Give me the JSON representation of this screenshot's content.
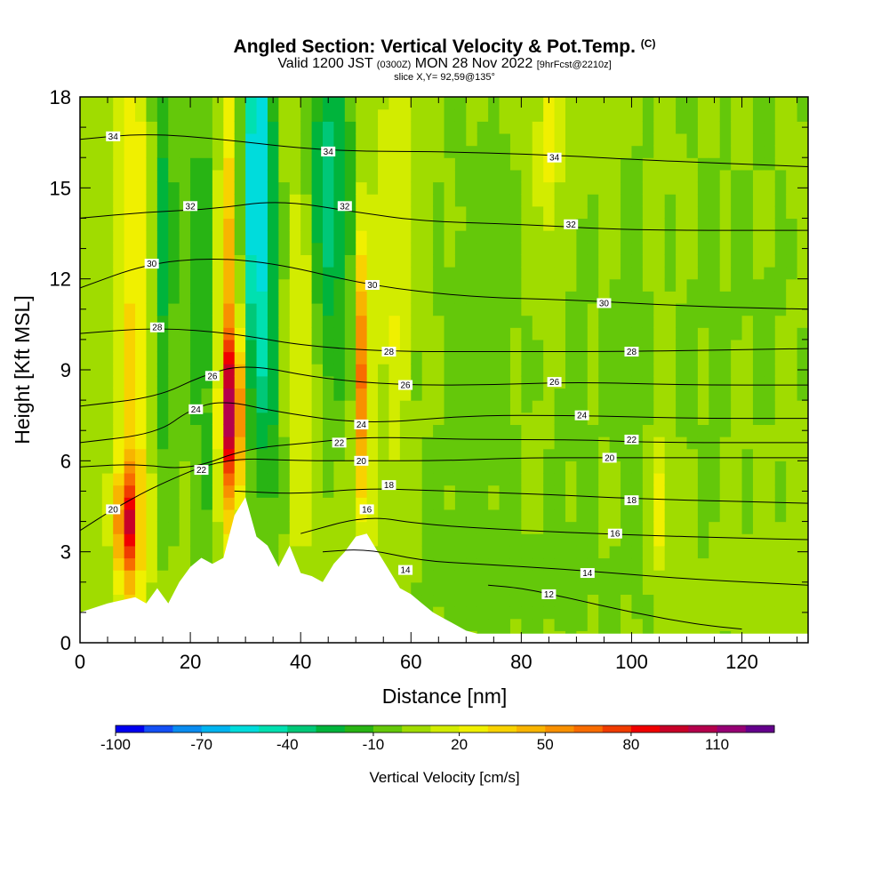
{
  "header": {
    "title": "Angled Section: Vertical Velocity & Pot.Temp.",
    "copyright": "(C)",
    "valid_prefix": "Valid 1200 JST",
    "valid_utc": "(0300Z)",
    "valid_date": "MON 28 Nov 2022",
    "forecast": "[9hrFcst@2210z]",
    "slice": "slice X,Y= 92,59@135°"
  },
  "chart_data": {
    "type": "heatmap",
    "title": "Angled Section: Vertical Velocity & Pot.Temp.",
    "xlabel": "Distance [nm]",
    "ylabel": "Height [Kft MSL]",
    "xlim": [
      0,
      132
    ],
    "ylim": [
      0,
      18
    ],
    "x_ticks": [
      0,
      20,
      40,
      60,
      80,
      100,
      120
    ],
    "x_tick_labels": [
      "0",
      "20",
      "40",
      "60",
      "80",
      "100",
      "120"
    ],
    "y_ticks": [
      0,
      3,
      6,
      9,
      12,
      15,
      18
    ],
    "y_tick_labels": [
      "0",
      "3",
      "6",
      "9",
      "12",
      "15",
      "18"
    ],
    "background_value": 5,
    "velocity_features": [
      {
        "x": 8.5,
        "y": 4.0,
        "sx": 1.3,
        "sy": 1.3,
        "value": 75
      },
      {
        "x": 10,
        "y": 9.5,
        "sx": 2.2,
        "sy": 9,
        "value": 28
      },
      {
        "x": 15,
        "y": 13.0,
        "sx": 1.6,
        "sy": 6,
        "value": -30
      },
      {
        "x": 22.5,
        "y": 11.5,
        "sx": 2.5,
        "sy": 7,
        "value": -22
      },
      {
        "x": 27.5,
        "y": 7.5,
        "sx": 1.3,
        "sy": 1.8,
        "value": 80
      },
      {
        "x": 27,
        "y": 11.5,
        "sx": 1.6,
        "sy": 6,
        "value": 45
      },
      {
        "x": 32,
        "y": 15.5,
        "sx": 2.2,
        "sy": 4.5,
        "value": -65
      },
      {
        "x": 34,
        "y": 8.5,
        "sx": 2.6,
        "sy": 3.5,
        "value": -25
      },
      {
        "x": 40,
        "y": 10.0,
        "sx": 2.2,
        "sy": 4,
        "value": 25
      },
      {
        "x": 45,
        "y": 15.0,
        "sx": 3,
        "sy": 5,
        "value": -40
      },
      {
        "x": 51.5,
        "y": 9.0,
        "sx": 0.9,
        "sy": 3.5,
        "value": 65
      },
      {
        "x": 57,
        "y": 13.0,
        "sx": 2,
        "sy": 6,
        "value": 18
      },
      {
        "x": 65,
        "y": 7.0,
        "sx": 7,
        "sy": 10,
        "value": -5
      },
      {
        "x": 85,
        "y": 16.5,
        "sx": 1.5,
        "sy": 2.5,
        "value": 22
      },
      {
        "x": 75,
        "y": 11.0,
        "sx": 5,
        "sy": 6,
        "value": -8
      },
      {
        "x": 90,
        "y": 8.0,
        "sx": 4,
        "sy": 6,
        "value": -7
      },
      {
        "x": 105,
        "y": 4.5,
        "sx": 1.2,
        "sy": 1.5,
        "value": 25
      },
      {
        "x": 100,
        "y": 9.0,
        "sx": 3,
        "sy": 8,
        "value": -8
      },
      {
        "x": 112,
        "y": 10.0,
        "sx": 5,
        "sy": 8,
        "value": -6
      },
      {
        "x": 125,
        "y": 12.0,
        "sx": 6,
        "sy": 6,
        "value": -6
      },
      {
        "x": 80,
        "y": 2.0,
        "sx": 10,
        "sy": 1.5,
        "value": -8
      }
    ],
    "terrain": {
      "distance": [
        0,
        5,
        10,
        12,
        14,
        16,
        18,
        20,
        22,
        24,
        26,
        28,
        30,
        32,
        34,
        36,
        38,
        40,
        42,
        44,
        46,
        48,
        50,
        52,
        54,
        56,
        58,
        60,
        62,
        64,
        66,
        68,
        70,
        72,
        80,
        132
      ],
      "height": [
        1.0,
        1.3,
        1.5,
        1.3,
        1.8,
        1.3,
        2.0,
        2.5,
        2.8,
        2.6,
        2.8,
        4.2,
        4.8,
        3.5,
        3.2,
        2.5,
        3.2,
        2.3,
        2.2,
        2.0,
        2.6,
        3.0,
        3.5,
        3.6,
        3.0,
        2.4,
        1.8,
        1.6,
        1.3,
        1.0,
        0.8,
        0.6,
        0.4,
        0.3,
        0.3,
        0.3
      ]
    },
    "theta_contours": [
      {
        "level": "12",
        "points": [
          [
            74,
            1.9
          ],
          [
            80,
            1.8
          ],
          [
            88,
            1.5
          ],
          [
            100,
            1.0
          ],
          [
            112,
            0.6
          ],
          [
            120,
            0.45
          ]
        ],
        "labels": [
          [
            85,
            1.6
          ]
        ]
      },
      {
        "level": "14",
        "points": [
          [
            44,
            3.0
          ],
          [
            52,
            3.1
          ],
          [
            62,
            2.7
          ],
          [
            72,
            2.6
          ],
          [
            90,
            2.4
          ],
          [
            110,
            2.1
          ],
          [
            132,
            1.9
          ]
        ],
        "labels": [
          [
            59,
            2.4
          ],
          [
            92,
            2.3
          ]
        ]
      },
      {
        "level": "16",
        "points": [
          [
            40,
            3.6
          ],
          [
            52,
            4.2
          ],
          [
            62,
            3.9
          ],
          [
            80,
            3.7
          ],
          [
            100,
            3.55
          ],
          [
            120,
            3.45
          ],
          [
            132,
            3.4
          ]
        ],
        "labels": [
          [
            52,
            4.4
          ],
          [
            97,
            3.6
          ]
        ]
      },
      {
        "level": "18",
        "points": [
          [
            28,
            5.0
          ],
          [
            40,
            4.9
          ],
          [
            52,
            5.1
          ],
          [
            66,
            5.0
          ],
          [
            84,
            4.9
          ],
          [
            100,
            4.75
          ],
          [
            132,
            4.6
          ]
        ],
        "labels": [
          [
            56,
            5.2
          ],
          [
            100,
            4.7
          ]
        ]
      },
      {
        "level": "20",
        "points": [
          [
            0,
            3.7
          ],
          [
            6,
            4.4
          ],
          [
            14,
            5.2
          ],
          [
            26,
            6.1
          ],
          [
            40,
            6.0
          ],
          [
            52,
            6.0
          ],
          [
            66,
            6.0
          ],
          [
            80,
            6.1
          ],
          [
            100,
            6.1
          ],
          [
            132,
            6.1
          ]
        ],
        "labels": [
          [
            6,
            4.4
          ],
          [
            51,
            6.0
          ],
          [
            96,
            6.1
          ]
        ]
      },
      {
        "level": "22",
        "points": [
          [
            0,
            5.8
          ],
          [
            10,
            5.9
          ],
          [
            20,
            5.7
          ],
          [
            30,
            6.4
          ],
          [
            42,
            6.6
          ],
          [
            52,
            6.8
          ],
          [
            70,
            6.7
          ],
          [
            90,
            6.7
          ],
          [
            105,
            6.6
          ],
          [
            132,
            6.6
          ]
        ],
        "labels": [
          [
            22,
            5.7
          ],
          [
            47,
            6.6
          ],
          [
            100,
            6.7
          ]
        ]
      },
      {
        "level": "24",
        "points": [
          [
            0,
            6.6
          ],
          [
            14,
            6.9
          ],
          [
            20,
            7.7
          ],
          [
            26,
            8.0
          ],
          [
            36,
            7.6
          ],
          [
            52,
            7.2
          ],
          [
            70,
            7.5
          ],
          [
            90,
            7.5
          ],
          [
            110,
            7.4
          ],
          [
            132,
            7.4
          ]
        ],
        "labels": [
          [
            21,
            7.7
          ],
          [
            51,
            7.2
          ],
          [
            91,
            7.5
          ]
        ]
      },
      {
        "level": "26",
        "points": [
          [
            0,
            7.8
          ],
          [
            14,
            8.1
          ],
          [
            22,
            8.8
          ],
          [
            30,
            9.2
          ],
          [
            44,
            8.7
          ],
          [
            58,
            8.5
          ],
          [
            74,
            8.5
          ],
          [
            90,
            8.6
          ],
          [
            110,
            8.5
          ],
          [
            132,
            8.5
          ]
        ],
        "labels": [
          [
            24,
            8.8
          ],
          [
            59,
            8.5
          ],
          [
            86,
            8.6
          ]
        ]
      },
      {
        "level": "28",
        "points": [
          [
            0,
            10.2
          ],
          [
            14,
            10.4
          ],
          [
            28,
            10.2
          ],
          [
            40,
            9.8
          ],
          [
            56,
            9.6
          ],
          [
            76,
            9.6
          ],
          [
            100,
            9.6
          ],
          [
            132,
            9.7
          ]
        ],
        "labels": [
          [
            14,
            10.4
          ],
          [
            56,
            9.6
          ],
          [
            100,
            9.6
          ]
        ]
      },
      {
        "level": "30",
        "points": [
          [
            0,
            11.7
          ],
          [
            12,
            12.5
          ],
          [
            24,
            12.7
          ],
          [
            36,
            12.5
          ],
          [
            52,
            11.8
          ],
          [
            70,
            11.4
          ],
          [
            90,
            11.3
          ],
          [
            110,
            11.1
          ],
          [
            132,
            11.0
          ]
        ],
        "labels": [
          [
            13,
            12.5
          ],
          [
            53,
            11.8
          ],
          [
            95,
            11.2
          ]
        ]
      },
      {
        "level": "32",
        "points": [
          [
            0,
            14.0
          ],
          [
            12,
            14.2
          ],
          [
            24,
            14.3
          ],
          [
            36,
            14.6
          ],
          [
            50,
            14.2
          ],
          [
            62,
            13.9
          ],
          [
            80,
            13.8
          ],
          [
            100,
            13.6
          ],
          [
            132,
            13.6
          ]
        ],
        "labels": [
          [
            20,
            14.4
          ],
          [
            48,
            14.4
          ],
          [
            89,
            13.8
          ]
        ]
      },
      {
        "level": "34",
        "points": [
          [
            0,
            16.6
          ],
          [
            12,
            16.8
          ],
          [
            26,
            16.6
          ],
          [
            40,
            16.3
          ],
          [
            52,
            16.2
          ],
          [
            64,
            16.2
          ],
          [
            84,
            16.1
          ],
          [
            104,
            15.9
          ],
          [
            132,
            15.7
          ]
        ],
        "labels": [
          [
            6,
            16.7
          ],
          [
            45,
            16.2
          ],
          [
            86,
            16.0
          ]
        ]
      }
    ],
    "colorbar": {
      "title": "Vertical Velocity [cm/s]",
      "min": -100,
      "max": 120,
      "step": 10,
      "tick_values": [
        -100,
        -70,
        -40,
        -10,
        20,
        50,
        80,
        110
      ],
      "tick_labels": [
        "-100",
        "-70",
        "-40",
        "-10",
        "20",
        "50",
        "80",
        "110"
      ],
      "colors": [
        "#0000f0",
        "#1450f5",
        "#0a8cf0",
        "#00b4f0",
        "#00dcdc",
        "#00e0b0",
        "#00c878",
        "#00b43c",
        "#28b414",
        "#64c80a",
        "#a0dc00",
        "#d2ec00",
        "#f0f000",
        "#f8d200",
        "#f8b400",
        "#f89000",
        "#f86c00",
        "#f03c00",
        "#f00000",
        "#c80028",
        "#b4004c",
        "#960074",
        "#64008c"
      ]
    }
  }
}
